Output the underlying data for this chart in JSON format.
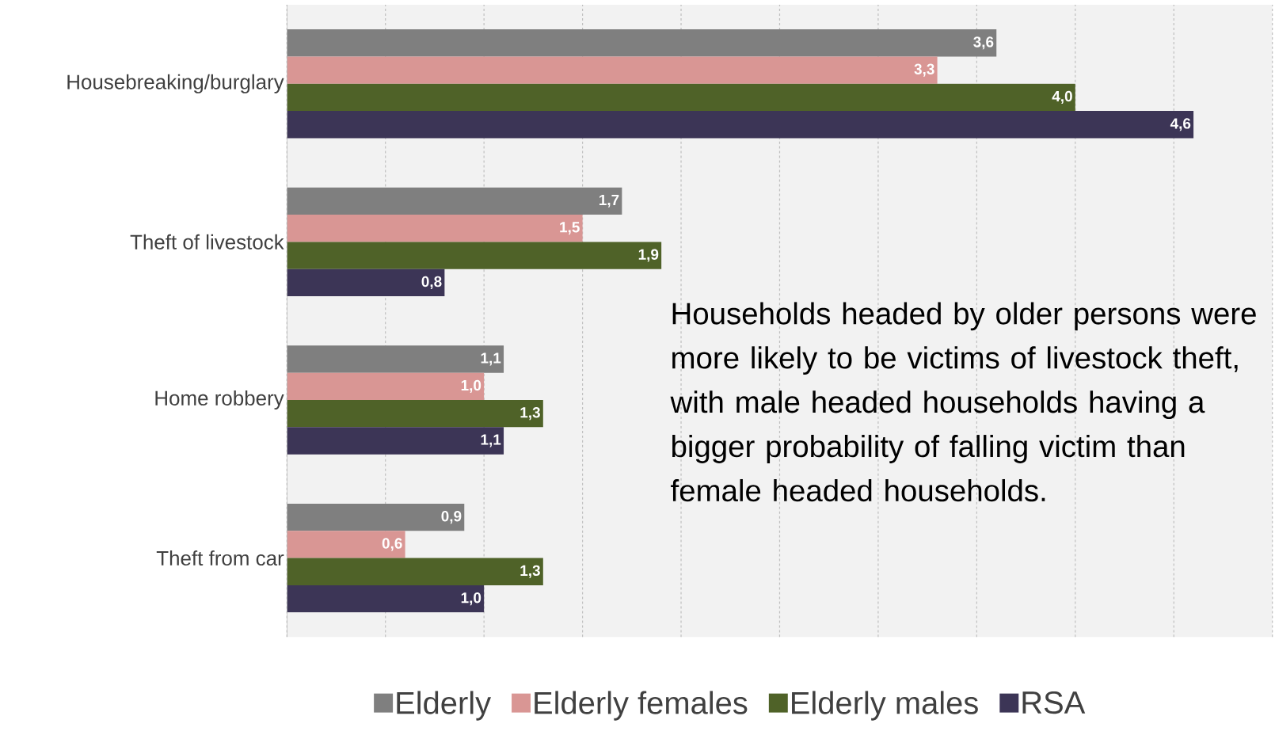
{
  "chart_data": {
    "type": "bar",
    "orientation": "horizontal",
    "categories": [
      "Housebreaking/burglary",
      "Theft of livestock",
      "Home robbery",
      "Theft from car"
    ],
    "series": [
      {
        "name": "Elderly",
        "color": "#7f7f7f",
        "values": [
          3.6,
          1.7,
          1.1,
          0.9
        ],
        "value_labels": [
          "3,6",
          "1,7",
          "1,1",
          "0,9"
        ]
      },
      {
        "name": "Elderly females",
        "color": "#d99694",
        "values": [
          3.3,
          1.5,
          1.0,
          0.6
        ],
        "value_labels": [
          "3,3",
          "1,5",
          "1,0",
          "0,6"
        ]
      },
      {
        "name": "Elderly males",
        "color": "#4f6228",
        "values": [
          4.0,
          1.9,
          1.3,
          1.3
        ],
        "value_labels": [
          "4,0",
          "1,9",
          "1,3",
          "1,3"
        ]
      },
      {
        "name": "RSA",
        "color": "#3c3556",
        "values": [
          4.6,
          0.8,
          1.1,
          1.0
        ],
        "value_labels": [
          "4,6",
          "0,8",
          "1,1",
          "1,0"
        ]
      }
    ],
    "xlim": [
      0,
      5
    ],
    "xticks": [
      {
        "value": 0,
        "label": null
      },
      {
        "value": 0.5,
        "label": null
      },
      {
        "value": 1,
        "label": null
      },
      {
        "value": 1.5,
        "label": null
      },
      {
        "value": 2,
        "label": null
      },
      {
        "value": 2.5,
        "label": null
      },
      {
        "value": 3,
        "label": null
      },
      {
        "value": 3.5,
        "label": null
      },
      {
        "value": 4,
        "label": null
      },
      {
        "value": 4.5,
        "label": null
      },
      {
        "value": 5,
        "label": null
      }
    ],
    "grid": "x",
    "legend": "bottom",
    "tick_labels": "y",
    "annotations": [
      "Households headed by older persons were more likely to be victims of livestock theft, with male headed households having a bigger probability of falling victim than female headed households."
    ]
  }
}
